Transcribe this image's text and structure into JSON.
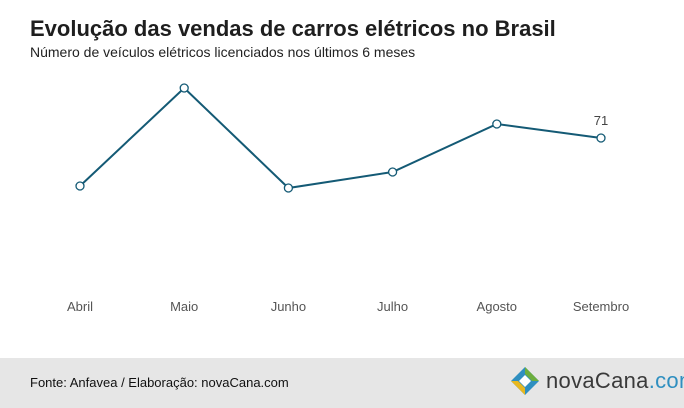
{
  "header": {
    "title": "Evolução das vendas de carros elétricos no Brasil",
    "subtitle": "Número de veículos elétricos licenciados nos últimos 6 meses"
  },
  "footer": {
    "source": "Fonte: Anfavea / Elaboração: novaCana.com",
    "logo_text_main": "novaCana",
    "logo_text_suffix": ".com"
  },
  "colors": {
    "line": "#145a75",
    "marker_fill": "#ffffff",
    "footer_bg": "#e6e6e6",
    "logo_blue": "#2f8fc0",
    "logo_green": "#6cae3e",
    "logo_yellow": "#e8b820"
  },
  "chart_data": {
    "type": "line",
    "title": "Evolução das vendas de carros elétricos no Brasil",
    "subtitle": "Número de veículos elétricos licenciados nos últimos 6 meses",
    "categories": [
      "Abril",
      "Maio",
      "Junho",
      "Julho",
      "Agosto",
      "Setembro"
    ],
    "series": [
      {
        "values": [
          47,
          96,
          46,
          54,
          78,
          71
        ]
      }
    ],
    "data_labels": [
      {
        "index": 5,
        "text": "71"
      }
    ],
    "ylim": [
      0,
      130
    ],
    "grid": false,
    "legend": "none"
  }
}
